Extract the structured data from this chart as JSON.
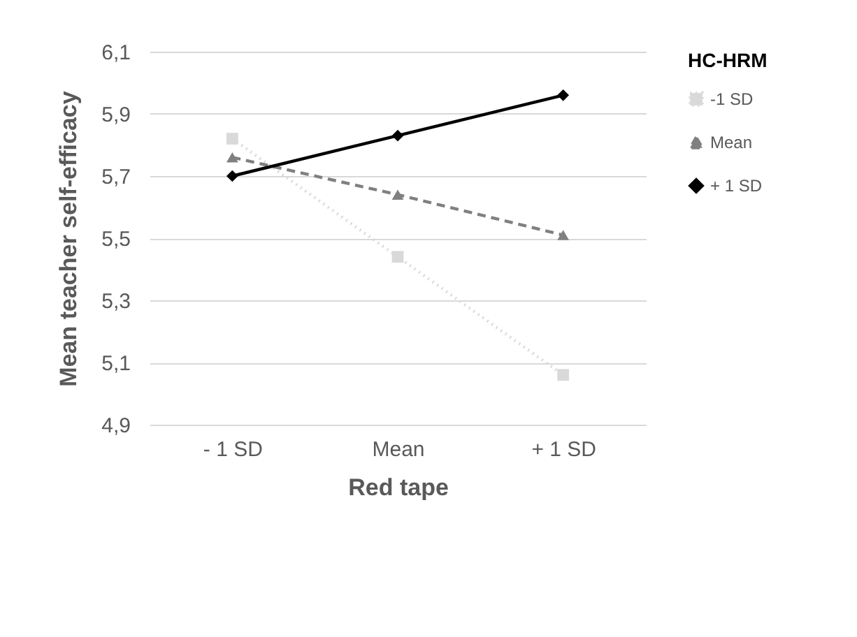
{
  "chart_data": {
    "type": "line",
    "xlabel": "Red tape",
    "ylabel": "Mean teacher self-efficacy",
    "legend_title": "HC-HRM",
    "categories": [
      "- 1 SD",
      "Mean",
      "+ 1 SD"
    ],
    "series": [
      {
        "name": "-1 SD",
        "color": "#d9d9d9",
        "values": [
          5.82,
          5.44,
          5.06
        ],
        "marker": "square",
        "line_style": "dotted"
      },
      {
        "name": "Mean",
        "color": "#808080",
        "values": [
          5.76,
          5.64,
          5.51
        ],
        "marker": "triangle",
        "line_style": "dashed"
      },
      {
        "name": "+ 1 SD",
        "color": "#000000",
        "values": [
          5.7,
          5.83,
          5.96
        ],
        "marker": "diamond",
        "line_style": "solid"
      }
    ],
    "ylim": [
      4.9,
      6.1
    ],
    "yticks": [
      {
        "value": 4.9,
        "label": "4,9"
      },
      {
        "value": 5.1,
        "label": "5,1"
      },
      {
        "value": 5.3,
        "label": "5,3"
      },
      {
        "value": 5.5,
        "label": "5,5"
      },
      {
        "value": 5.7,
        "label": "5,7"
      },
      {
        "value": 5.9,
        "label": "5,9"
      },
      {
        "value": 6.1,
        "label": "6,1"
      }
    ],
    "grid": "y",
    "legend": "right"
  }
}
